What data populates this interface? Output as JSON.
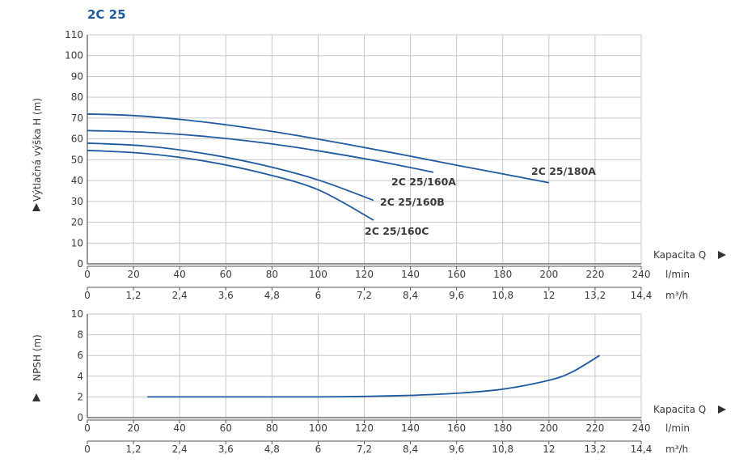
{
  "title": "2C 25",
  "colors": {
    "curve": "#1f5a9e",
    "title": "#1f5a9e",
    "grid": "#c8c8c8",
    "axis": "#555555",
    "text": "#3a3a3a"
  },
  "axes": {
    "flow_label": "Kapacita Q",
    "flow_unit_lmin": "l/min",
    "flow_unit_m3h": "m³/h",
    "lmin_ticks": [
      "0",
      "20",
      "40",
      "60",
      "80",
      "100",
      "120",
      "140",
      "160",
      "180",
      "200",
      "220",
      "240"
    ],
    "m3h_ticks": [
      "0",
      "1,2",
      "2,4",
      "3,6",
      "4,8",
      "6",
      "7,2",
      "8,4",
      "9,6",
      "10,8",
      "12",
      "13,2",
      "14,4"
    ]
  },
  "chart_data": [
    {
      "type": "line",
      "title": "2C 25",
      "xlabel": "Kapacita Q",
      "ylabel": "Výtlačná výška H (m)",
      "xlim": [
        0,
        240
      ],
      "ylim": [
        0,
        110
      ],
      "y_ticks": [
        0,
        10,
        20,
        30,
        40,
        50,
        60,
        70,
        80,
        90,
        100,
        110
      ],
      "grid": true,
      "series": [
        {
          "name": "2C 25/180A",
          "x": [
            0,
            20,
            40,
            60,
            80,
            100,
            120,
            140,
            160,
            180,
            200
          ],
          "values": [
            72,
            71.2,
            69.4,
            66.8,
            63.6,
            59.9,
            55.9,
            51.7,
            47.4,
            43.2,
            39
          ]
        },
        {
          "name": "2C 25/160A",
          "x": [
            0,
            25,
            50,
            75,
            100,
            125,
            150
          ],
          "values": [
            64,
            63.2,
            61.3,
            58.3,
            54.3,
            49.5,
            44
          ]
        },
        {
          "name": "2C 25/160B",
          "x": [
            0,
            25,
            50,
            75,
            100,
            124
          ],
          "values": [
            58,
            56.6,
            53.1,
            47.7,
            40.3,
            30.5
          ]
        },
        {
          "name": "2C 25/160C",
          "x": [
            0,
            25,
            50,
            75,
            100,
            124
          ],
          "values": [
            54.5,
            53,
            49.5,
            43.8,
            35.6,
            21
          ]
        }
      ]
    },
    {
      "type": "line",
      "title": "",
      "xlabel": "Kapacita Q",
      "ylabel": "NPSH (m)",
      "xlim": [
        0,
        240
      ],
      "ylim": [
        0,
        10
      ],
      "y_ticks": [
        0,
        2,
        4,
        6,
        8,
        10
      ],
      "grid": true,
      "series": [
        {
          "name": "",
          "x": [
            26,
            40,
            60,
            80,
            100,
            120,
            140,
            160,
            180,
            200,
            210,
            222
          ],
          "values": [
            2,
            2,
            2,
            2,
            2,
            2.05,
            2.15,
            2.35,
            2.75,
            3.6,
            4.4,
            6
          ]
        }
      ]
    }
  ]
}
